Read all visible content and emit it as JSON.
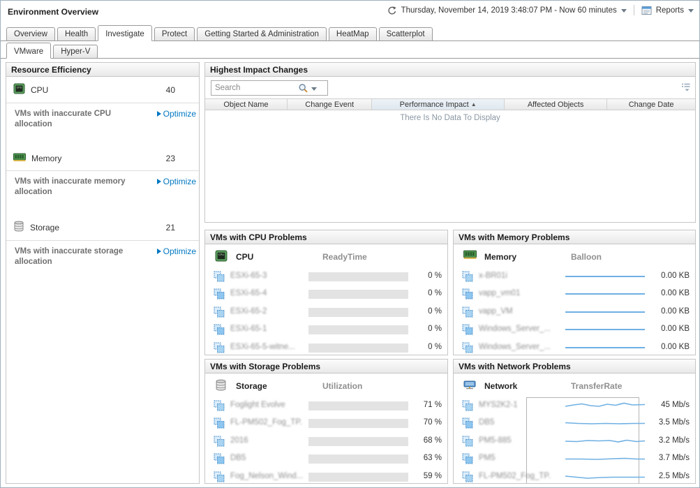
{
  "header": {
    "title": "Environment Overview",
    "time_range": "Thursday, November 14, 2019 3:48:07 PM - Now 60 minutes",
    "reports_label": "Reports"
  },
  "tabs": {
    "items": [
      "Overview",
      "Health",
      "Investigate",
      "Protect",
      "Getting Started & Administration",
      "HeatMap",
      "Scatterplot"
    ],
    "active": "Investigate"
  },
  "subtabs": {
    "items": [
      "VMware",
      "Hyper-V"
    ],
    "active": "VMware"
  },
  "resource_efficiency": {
    "title": "Resource Efficiency",
    "cpu": {
      "label": "CPU",
      "count": "40",
      "desc": "VMs with inaccurate CPU allocation",
      "action": "Optimize"
    },
    "memory": {
      "label": "Memory",
      "count": "23",
      "desc": "VMs with inaccurate memory allocation",
      "action": "Optimize"
    },
    "storage": {
      "label": "Storage",
      "count": "21",
      "desc": "VMs with inaccurate storage allocation",
      "action": "Optimize"
    }
  },
  "highest_impact_changes": {
    "title": "Highest Impact Changes",
    "search_placeholder": "Search",
    "columns": [
      "Object Name",
      "Change Event",
      "Performance Impact",
      "Affected Objects",
      "Change Date"
    ],
    "sorted_column": "Performance Impact",
    "sort_direction": "asc",
    "sort_indicator": "▲",
    "empty_message": "There Is No Data To Display"
  },
  "cpu_problems": {
    "title": "VMs with CPU Problems",
    "resource": "CPU",
    "metric": "ReadyTime",
    "rows": [
      {
        "name": "ESXi-65-3",
        "value": "0 %",
        "percent": 0
      },
      {
        "name": "ESXi-65-4",
        "value": "0 %",
        "percent": 0
      },
      {
        "name": "ESXi-65-2",
        "value": "0 %",
        "percent": 0
      },
      {
        "name": "ESXi-65-1",
        "value": "0 %",
        "percent": 0
      },
      {
        "name": "ESXi-65-5-witne...",
        "value": "0 %",
        "percent": 0
      }
    ]
  },
  "memory_problems": {
    "title": "VMs with Memory Problems",
    "resource": "Memory",
    "metric": "Balloon",
    "rows": [
      {
        "name": "x-BR01i",
        "value": "0.00 KB"
      },
      {
        "name": "vapp_vm01",
        "value": "0.00 KB"
      },
      {
        "name": "vapp_VM",
        "value": "0.00 KB"
      },
      {
        "name": "Windows_Server_...",
        "value": "0.00 KB"
      },
      {
        "name": "Windows_Server_...",
        "value": "0.00 KB"
      }
    ]
  },
  "storage_problems": {
    "title": "VMs with Storage Problems",
    "resource": "Storage",
    "metric": "Utilization",
    "rows": [
      {
        "name": "Foglight Evolve",
        "value": "71 %",
        "percent": 71
      },
      {
        "name": "FL-PM502_Fog_TP...",
        "value": "70 %",
        "percent": 70
      },
      {
        "name": "2016",
        "value": "68 %",
        "percent": 68
      },
      {
        "name": "DB5",
        "value": "63 %",
        "percent": 63
      },
      {
        "name": "Fog_Nelson_Wind...",
        "value": "59 %",
        "percent": 59
      }
    ]
  },
  "network_problems": {
    "title": "VMs with Network Problems",
    "resource": "Network",
    "metric": "TransferRate",
    "rows": [
      {
        "name": "MYS2K2-1",
        "value": "45 Mb/s"
      },
      {
        "name": "DB5",
        "value": "3.5 Mb/s"
      },
      {
        "name": "PM5-885",
        "value": "3.2 Mb/s"
      },
      {
        "name": "PM5",
        "value": "3.7 Mb/s"
      },
      {
        "name": "FL-PM502_Fog_TP...",
        "value": "2.5 Mb/s"
      }
    ]
  },
  "colors": {
    "bar_blue": "#1b9ddb",
    "link_blue": "#0077c2",
    "sparkline_blue": "#6fb0e3"
  }
}
